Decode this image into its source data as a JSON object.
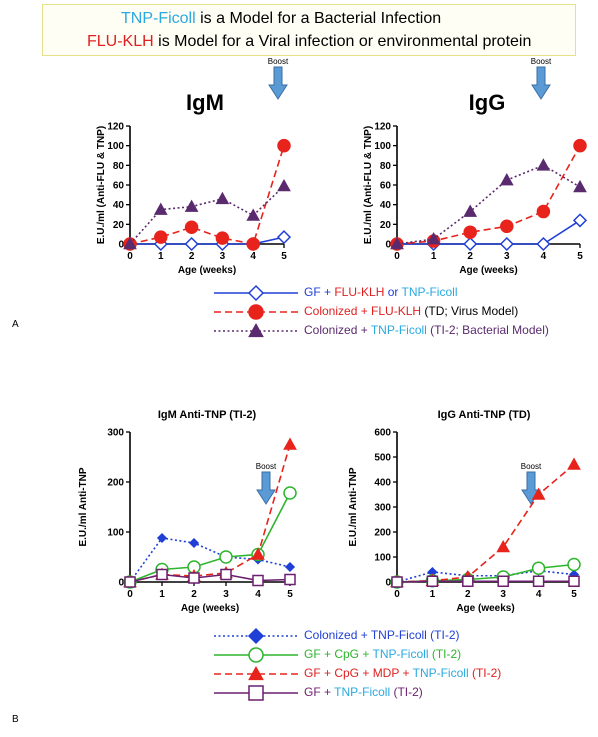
{
  "header": {
    "line1": {
      "term": "TNP-Ficoll",
      "rest": " is a Model for a Bacterial Infection"
    },
    "line2": {
      "term": "FLU-KLH",
      "rest": " is Model for a Viral infection or environmental protein"
    }
  },
  "panel_labels": {
    "a": "A",
    "b": "B"
  },
  "colors": {
    "blue": "#1f3fd6",
    "red": "#e8231c",
    "purple": "#5a2a6e",
    "green": "#2db52d",
    "plum": "#6b1f6e",
    "tnp": "#29a9e0",
    "boost_arrow": "#5b9bd5"
  },
  "legend_a": [
    {
      "parts": [
        {
          "t": "GF + ",
          "c": "#1f3fd6"
        },
        {
          "t": "FLU-KLH",
          "c": "#e02020"
        },
        {
          "t": " or ",
          "c": "#1f3fd6"
        },
        {
          "t": "TNP-Ficoll",
          "c": "#29a9e0"
        }
      ]
    },
    {
      "parts": [
        {
          "t": "Colonized + ",
          "c": "#e02020"
        },
        {
          "t": "FLU-KLH",
          "c": "#e02020"
        },
        {
          "t": " (TD; Virus Model)",
          "c": "#000000"
        }
      ]
    },
    {
      "parts": [
        {
          "t": "Colonized + ",
          "c": "#5a2a6e"
        },
        {
          "t": "TNP-Ficoll",
          "c": "#29a9e0"
        },
        {
          "t": " (TI-2; Bacterial Model)",
          "c": "#5a2a6e"
        }
      ]
    }
  ],
  "legend_b": [
    {
      "parts": [
        {
          "t": "Colonized + ",
          "c": "#1f3fd6"
        },
        {
          "t": "TNP-Ficoll",
          "c": "#1f3fd6"
        },
        {
          "t": " (TI-2)",
          "c": "#1f3fd6"
        }
      ]
    },
    {
      "parts": [
        {
          "t": "GF + CpG + ",
          "c": "#2db52d"
        },
        {
          "t": "TNP-Ficoll",
          "c": "#29a9e0"
        },
        {
          "t": " (TI-2)",
          "c": "#2db52d"
        }
      ]
    },
    {
      "parts": [
        {
          "t": "GF + CpG + MDP + ",
          "c": "#e02020"
        },
        {
          "t": "TNP-Ficoll",
          "c": "#29a9e0"
        },
        {
          "t": " (TI-2)",
          "c": "#e02020"
        }
      ]
    },
    {
      "parts": [
        {
          "t": "GF + ",
          "c": "#6b1f6e"
        },
        {
          "t": "TNP-Ficoll",
          "c": "#29a9e0"
        },
        {
          "t": " (TI-2)",
          "c": "#6b1f6e"
        }
      ]
    }
  ],
  "chart_data": [
    {
      "type": "line",
      "title": "IgM",
      "annotation": "Boost",
      "xlabel": "Age (weeks)",
      "ylabel": "E.U./ml (Anti-FLU & TNP)",
      "x": [
        0,
        1,
        2,
        3,
        4,
        5
      ],
      "xlim": [
        0,
        5
      ],
      "ylim": [
        0,
        120
      ],
      "yticks": [
        0,
        20,
        40,
        60,
        80,
        100,
        120
      ],
      "series": [
        {
          "values": [
            0,
            0,
            0,
            0,
            0,
            7
          ],
          "color": "#1f3fd6",
          "dash": "solid",
          "marker": "diamond-open"
        },
        {
          "values": [
            0,
            7,
            17,
            6,
            0,
            100
          ],
          "color": "#e8231c",
          "dash": "dashed",
          "marker": "circle-filled"
        },
        {
          "values": [
            0,
            35,
            38,
            46,
            29,
            59
          ],
          "color": "#5a2a6e",
          "dash": "dotted",
          "marker": "triangle-filled"
        }
      ]
    },
    {
      "type": "line",
      "title": "IgG",
      "annotation": "Boost",
      "xlabel": "Age (weeks)",
      "ylabel": "E.U./ml (Anti-FLU & TNP)",
      "x": [
        0,
        1,
        2,
        3,
        4,
        5
      ],
      "xlim": [
        0,
        5
      ],
      "ylim": [
        0,
        120
      ],
      "yticks": [
        0,
        20,
        40,
        60,
        80,
        100,
        120
      ],
      "series": [
        {
          "values": [
            0,
            0,
            0,
            0,
            0,
            24
          ],
          "color": "#1f3fd6",
          "dash": "solid",
          "marker": "diamond-open"
        },
        {
          "values": [
            0,
            3,
            12,
            18,
            33,
            100
          ],
          "color": "#e8231c",
          "dash": "dashed",
          "marker": "circle-filled"
        },
        {
          "values": [
            0,
            5,
            33,
            65,
            80,
            58
          ],
          "color": "#5a2a6e",
          "dash": "dotted",
          "marker": "triangle-filled"
        }
      ]
    },
    {
      "type": "line",
      "title": "IgM Anti-TNP (TI-2)",
      "annotation": "Boost",
      "xlabel": "Age (weeks)",
      "ylabel": "E.U./ml Anti-TNP",
      "x": [
        0,
        1,
        2,
        3,
        4,
        5
      ],
      "xlim": [
        0,
        5
      ],
      "ylim": [
        0,
        300
      ],
      "yticks": [
        0,
        100,
        200,
        300
      ],
      "series": [
        {
          "values": [
            0,
            88,
            78,
            50,
            45,
            30
          ],
          "color": "#1f3fd6",
          "dash": "dotted",
          "marker": "diamond-filled"
        },
        {
          "values": [
            0,
            25,
            30,
            50,
            55,
            178
          ],
          "color": "#2db52d",
          "dash": "solid",
          "marker": "circle-open"
        },
        {
          "values": [
            0,
            15,
            12,
            18,
            55,
            275
          ],
          "color": "#e8231c",
          "dash": "dashed",
          "marker": "triangle-filled"
        },
        {
          "values": [
            0,
            15,
            8,
            15,
            3,
            5
          ],
          "color": "#6b1f6e",
          "dash": "solid",
          "marker": "square-open"
        }
      ]
    },
    {
      "type": "line",
      "title": "IgG Anti-TNP (TD)",
      "annotation": "Boost",
      "xlabel": "Age (weeks)",
      "ylabel": "E.U./ml Anti-TNP",
      "x": [
        0,
        1,
        2,
        3,
        4,
        5
      ],
      "xlim": [
        0,
        5
      ],
      "ylim": [
        0,
        600
      ],
      "yticks": [
        0,
        100,
        200,
        300,
        400,
        500,
        600
      ],
      "series": [
        {
          "values": [
            0,
            40,
            25,
            25,
            45,
            30
          ],
          "color": "#1f3fd6",
          "dash": "dotted",
          "marker": "diamond-filled"
        },
        {
          "values": [
            0,
            5,
            10,
            20,
            55,
            70
          ],
          "color": "#2db52d",
          "dash": "solid",
          "marker": "circle-open"
        },
        {
          "values": [
            0,
            5,
            20,
            140,
            350,
            470
          ],
          "color": "#e8231c",
          "dash": "dashed",
          "marker": "triangle-filled"
        },
        {
          "values": [
            0,
            3,
            3,
            3,
            3,
            3
          ],
          "color": "#6b1f6e",
          "dash": "solid",
          "marker": "square-open"
        }
      ]
    }
  ]
}
